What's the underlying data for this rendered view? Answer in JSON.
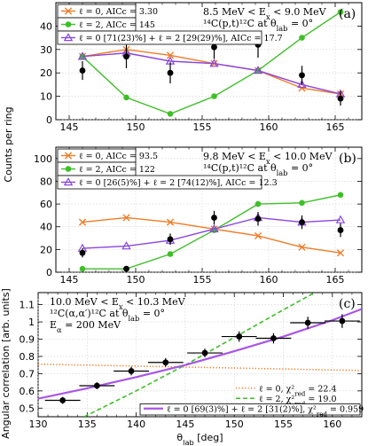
{
  "colors": {
    "l0": "#f07c28",
    "l2": "#3ebf28",
    "mix": "#8a45e0",
    "fit": "#a855e8",
    "data": "#000000"
  },
  "ylabel_shared": "Counts per ring",
  "chart_data": [
    {
      "id": "a",
      "type": "line",
      "panel_label": "(a)",
      "annotation": [
        "8.5 MeV < E_x < 9.0 MeV",
        "¹⁴C(p,t)¹²C at θ_lab = 0°"
      ],
      "xlim": [
        144,
        167
      ],
      "ylim": [
        0,
        50
      ],
      "xticks": [
        145,
        150,
        155,
        160,
        165
      ],
      "yticks": [
        0,
        10,
        20,
        30,
        40
      ],
      "grid": true,
      "legend_position": "top-left",
      "data_points": {
        "x": [
          146,
          149.3,
          152.6,
          155.9,
          159.2,
          162.5,
          165.4
        ],
        "y": [
          21,
          27,
          20,
          31,
          32,
          19,
          9
        ],
        "yerr": [
          4,
          5,
          4.5,
          5,
          5.5,
          4,
          3
        ]
      },
      "series": [
        {
          "name": "ℓ = 0, AICc = 3.30",
          "marker": "x",
          "color": "l0",
          "x": [
            146,
            149.3,
            152.6,
            155.9,
            159.2,
            162.5,
            165.4
          ],
          "values": [
            27,
            30,
            27.5,
            24,
            21,
            13.5,
            11
          ]
        },
        {
          "name": "ℓ = 2, AICc = 145",
          "marker": "circle",
          "color": "l2",
          "x": [
            146,
            149.3,
            152.6,
            155.9,
            159.2,
            162.5,
            165.4
          ],
          "values": [
            27,
            9.5,
            2.5,
            10,
            21,
            35,
            46
          ]
        },
        {
          "name": "ℓ = 0 [71(23)%] + ℓ = 2 [29(29)%], AICc = 17.7",
          "marker": "triangle",
          "color": "mix",
          "x": [
            146,
            149.3,
            152.6,
            155.9,
            159.2,
            162.5,
            165.4
          ],
          "values": [
            27,
            28.5,
            25,
            24,
            21,
            15,
            11
          ]
        }
      ]
    },
    {
      "id": "b",
      "type": "line",
      "panel_label": "(b)",
      "annotation": [
        "9.8 MeV < E_x < 10.0 MeV",
        "¹⁴C(p,t)¹²C at θ_lab = 0°"
      ],
      "xlim": [
        144,
        167
      ],
      "ylim": [
        0,
        110
      ],
      "xticks": [
        145,
        150,
        155,
        160,
        165
      ],
      "yticks": [
        0,
        20,
        40,
        60,
        80,
        100
      ],
      "grid": true,
      "legend_position": "top-left",
      "data_points": {
        "x": [
          146,
          149.3,
          152.6,
          155.9,
          159.2,
          162.5,
          165.4
        ],
        "y": [
          17,
          3,
          29,
          48,
          47,
          44,
          37
        ],
        "yerr": [
          4,
          2,
          5,
          6,
          6,
          6,
          6
        ]
      },
      "series": [
        {
          "name": "ℓ = 0, AICc = 93.5",
          "marker": "x",
          "color": "l0",
          "x": [
            146,
            149.3,
            152.6,
            155.9,
            159.2,
            162.5,
            165.4
          ],
          "values": [
            44,
            48,
            44,
            38,
            32,
            22,
            17
          ]
        },
        {
          "name": "ℓ = 2, AICc = 122",
          "marker": "circle",
          "color": "l2",
          "x": [
            146,
            149.3,
            152.6,
            155.9,
            159.2,
            162.5,
            165.4
          ],
          "values": [
            3,
            3,
            16,
            37,
            60,
            61,
            68
          ]
        },
        {
          "name": "ℓ = 0 [26(5)%] + ℓ = 2 [74(12)%], AICc = 12.3",
          "marker": "triangle",
          "color": "mix",
          "x": [
            146,
            149.3,
            152.6,
            155.9,
            159.2,
            162.5,
            165.4
          ],
          "values": [
            21,
            23,
            28,
            38,
            48,
            44,
            46
          ]
        }
      ]
    },
    {
      "id": "c",
      "type": "scatter",
      "panel_label": "(c)",
      "annotation": [
        "10.0 MeV < E_x < 10.3 MeV",
        "¹²C(α,α′)¹²C at θ_lab = 0°",
        "E_α = 200 MeV"
      ],
      "xlabel": "θ_lab [deg]",
      "ylabel": "Angular correlation [arb. units]",
      "xlim": [
        130,
        163
      ],
      "ylim": [
        0.45,
        1.17
      ],
      "xticks": [
        130,
        135,
        140,
        145,
        150,
        155,
        160
      ],
      "yticks": [
        0.5,
        0.6,
        0.7,
        0.8,
        0.9,
        1,
        1.1
      ],
      "grid": true,
      "legend_position": "bottom-right",
      "data_points": {
        "x": [
          132.5,
          136,
          139.5,
          143,
          147,
          150.5,
          154,
          157.5,
          161
        ],
        "y": [
          0.545,
          0.63,
          0.715,
          0.765,
          0.82,
          0.915,
          0.905,
          0.995,
          1.005
        ],
        "xerr": [
          1.8,
          1.8,
          1.8,
          1.8,
          1.8,
          1.8,
          1.8,
          1.8,
          1.8
        ],
        "yerr": [
          0.02,
          0.02,
          0.025,
          0.025,
          0.025,
          0.03,
          0.03,
          0.035,
          0.04
        ]
      },
      "series": [
        {
          "name": "ℓ = 0, χ²_red = 22.4",
          "style": "dotted",
          "color": "l0",
          "x": [
            130,
            163
          ],
          "values": [
            0.755,
            0.718
          ]
        },
        {
          "name": "ℓ = 2, χ²_red = 19.0",
          "style": "dashed",
          "color": "l2",
          "x": [
            134.7,
            140,
            145,
            150,
            155,
            158.2
          ],
          "values": [
            0.45,
            0.6,
            0.75,
            0.91,
            1.07,
            1.17
          ]
        },
        {
          "name": "ℓ = 0 [69(3)%] + ℓ = 2 [31(2)%], χ²_red = 0.959",
          "style": "solid",
          "color": "fit",
          "x": [
            130,
            135,
            140,
            145,
            150,
            155,
            160,
            163
          ],
          "values": [
            0.555,
            0.615,
            0.68,
            0.75,
            0.83,
            0.915,
            1.01,
            1.075
          ]
        }
      ]
    }
  ]
}
